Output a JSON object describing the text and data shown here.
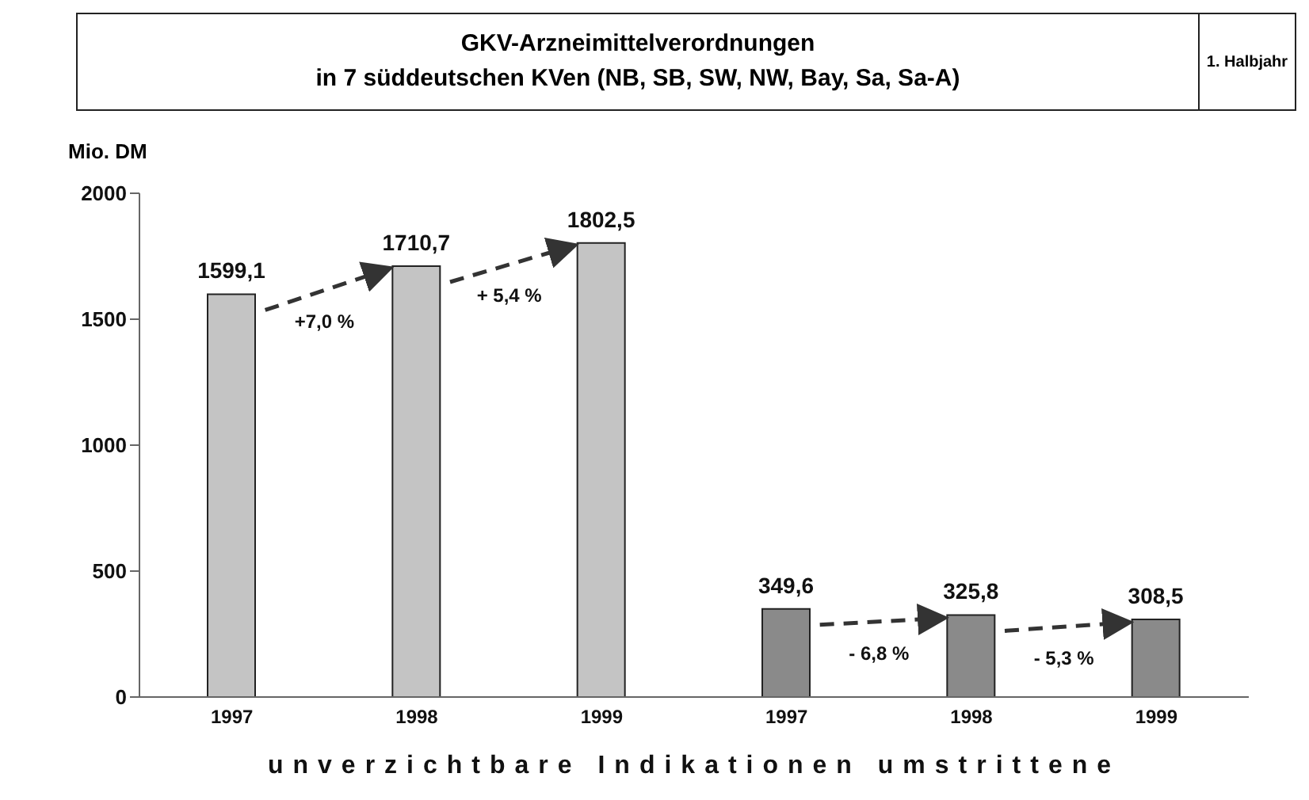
{
  "chart_data": {
    "type": "bar",
    "title": "GKV-Arzneimittelverordnungen",
    "subtitle": "in 7 süddeutschen KVen (NB, SB, SW, NW, Bay, Sa, Sa-A)",
    "ylabel": "Mio. DM",
    "xlabel": "unverzichtbare Indikationen umstrittene",
    "categories": [
      "1997",
      "1998",
      "1999",
      "1997",
      "1998",
      "1999"
    ],
    "values": [
      1599.1,
      1710.7,
      1802.5,
      349.6,
      325.8,
      308.5
    ],
    "colors": [
      "#c4c4c4",
      "#c4c4c4",
      "#c4c4c4",
      "#8a8a8a",
      "#8a8a8a",
      "#8a8a8a"
    ],
    "ylim": [
      0,
      2000
    ],
    "yticks": [
      0,
      500,
      1000,
      1500,
      2000
    ],
    "grid": false,
    "legend": false,
    "value_labels": [
      "1599,1",
      "1710,7",
      "1802,5",
      "349,6",
      "325,8",
      "308,5"
    ],
    "annotations": [
      "1. Halbjahr",
      "+7,0 %",
      "+ 5,4 %",
      "- 6,8 %",
      "- 5,3 %"
    ]
  }
}
